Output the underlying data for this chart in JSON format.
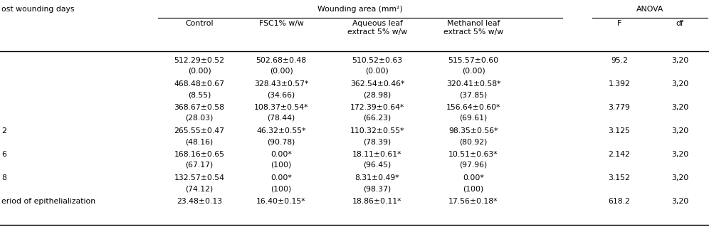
{
  "col0_header": "ost wounding days",
  "wounding_area_header": "Wounding area (mm²)",
  "anova_header": "ANOVA",
  "sub_headers": [
    "Control",
    "FSC1% w/w",
    "Aqueous leaf\nextract 5% w/w",
    "Methanol leaf\nextract 5% w/w",
    "F",
    "df"
  ],
  "rows": [
    {
      "col0": "",
      "col1": "512.29±0.52",
      "col1b": "(0.00)",
      "col2": "502.68±0.48",
      "col2b": "(0.00)",
      "col3": "510.52±0.63",
      "col3b": "(0.00)",
      "col4": "515.57±0.60",
      "col4b": "(0.00)",
      "col5": "95.2",
      "col6": "3,20"
    },
    {
      "col0": "",
      "col1": "468.48±0.67",
      "col1b": "(8.55)",
      "col2": "328.43±0.57*",
      "col2b": "(34.66)",
      "col3": "362.54±0.46*",
      "col3b": "(28.98)",
      "col4": "320.41±0.58*",
      "col4b": "(37.85)",
      "col5": "1.392",
      "col6": "3,20"
    },
    {
      "col0": "",
      "col1": "368.67±0.58",
      "col1b": "(28.03)",
      "col2": "108.37±0.54*",
      "col2b": "(78.44)",
      "col3": "172.39±0.64*",
      "col3b": "(66.23)",
      "col4": "156.64±0.60*",
      "col4b": "(69.61)",
      "col5": "3.779",
      "col6": "3,20"
    },
    {
      "col0": "2",
      "col1": "265.55±0.47",
      "col1b": "(48.16)",
      "col2": "46.32±0.55*",
      "col2b": "(90.78)",
      "col3": "110.32±0.55*",
      "col3b": "(78.39)",
      "col4": "98.35±0.56*",
      "col4b": "(80.92)",
      "col5": "3.125",
      "col6": "3,20"
    },
    {
      "col0": "6",
      "col1": "168.16±0.65",
      "col1b": "(67.17)",
      "col2": "0.00*",
      "col2b": "(100)",
      "col3": "18.11±0.61*",
      "col3b": "(96.45)",
      "col4": "10.51±0.63*",
      "col4b": "(97.96)",
      "col5": "2.142",
      "col6": "3,20"
    },
    {
      "col0": "8",
      "col1": "132.57±0.54",
      "col1b": "(74.12)",
      "col2": "0.00*",
      "col2b": "(100)",
      "col3": "8.31±0.49*",
      "col3b": "(98.37)",
      "col4": "0.00*",
      "col4b": "(100)",
      "col5": "3.152",
      "col6": "3,20"
    },
    {
      "col0": "eriod of epithelialization",
      "col1": "23.48±0.13",
      "col1b": "",
      "col2": "16.40±0.15*",
      "col2b": "",
      "col3": "18.86±0.11*",
      "col3b": "",
      "col4": "17.56±0.18*",
      "col4b": "",
      "col5": "618.2",
      "col6": "3,20"
    }
  ],
  "font_size": 7.8,
  "line_color": "#000000",
  "bg_color": "#ffffff"
}
